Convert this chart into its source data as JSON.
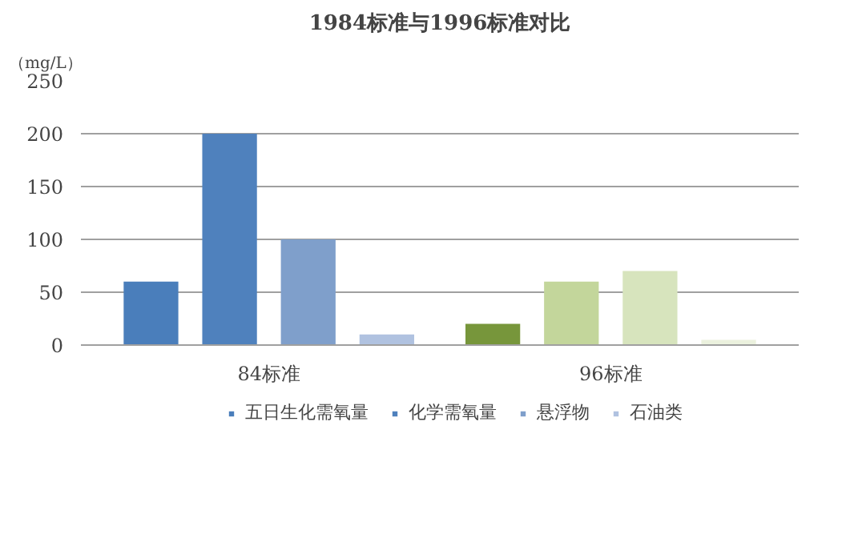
{
  "chart_data": {
    "type": "bar",
    "title": "1984标准与1996标准对比",
    "ylabel": "（mg/L）",
    "categories": [
      "84标准",
      "96标准"
    ],
    "series": [
      {
        "name": "五日生化需氧量",
        "colors": [
          "#4a7ebb",
          "#77963b"
        ],
        "values": [
          60,
          20
        ]
      },
      {
        "name": "化学需氧量",
        "colors": [
          "#4f81bd",
          "#c3d69b"
        ],
        "values": [
          200,
          60
        ]
      },
      {
        "name": "悬浮物",
        "colors": [
          "#7f9fcb",
          "#d7e4bd"
        ],
        "values": [
          100,
          70
        ]
      },
      {
        "name": "石油类",
        "colors": [
          "#b0c2e0",
          "#ebf1de"
        ],
        "values": [
          10,
          5
        ]
      }
    ],
    "ylim": [
      0,
      250
    ],
    "yticks": [
      0,
      50,
      100,
      150,
      200,
      250
    ],
    "grid": "y",
    "legend": "bottom"
  }
}
